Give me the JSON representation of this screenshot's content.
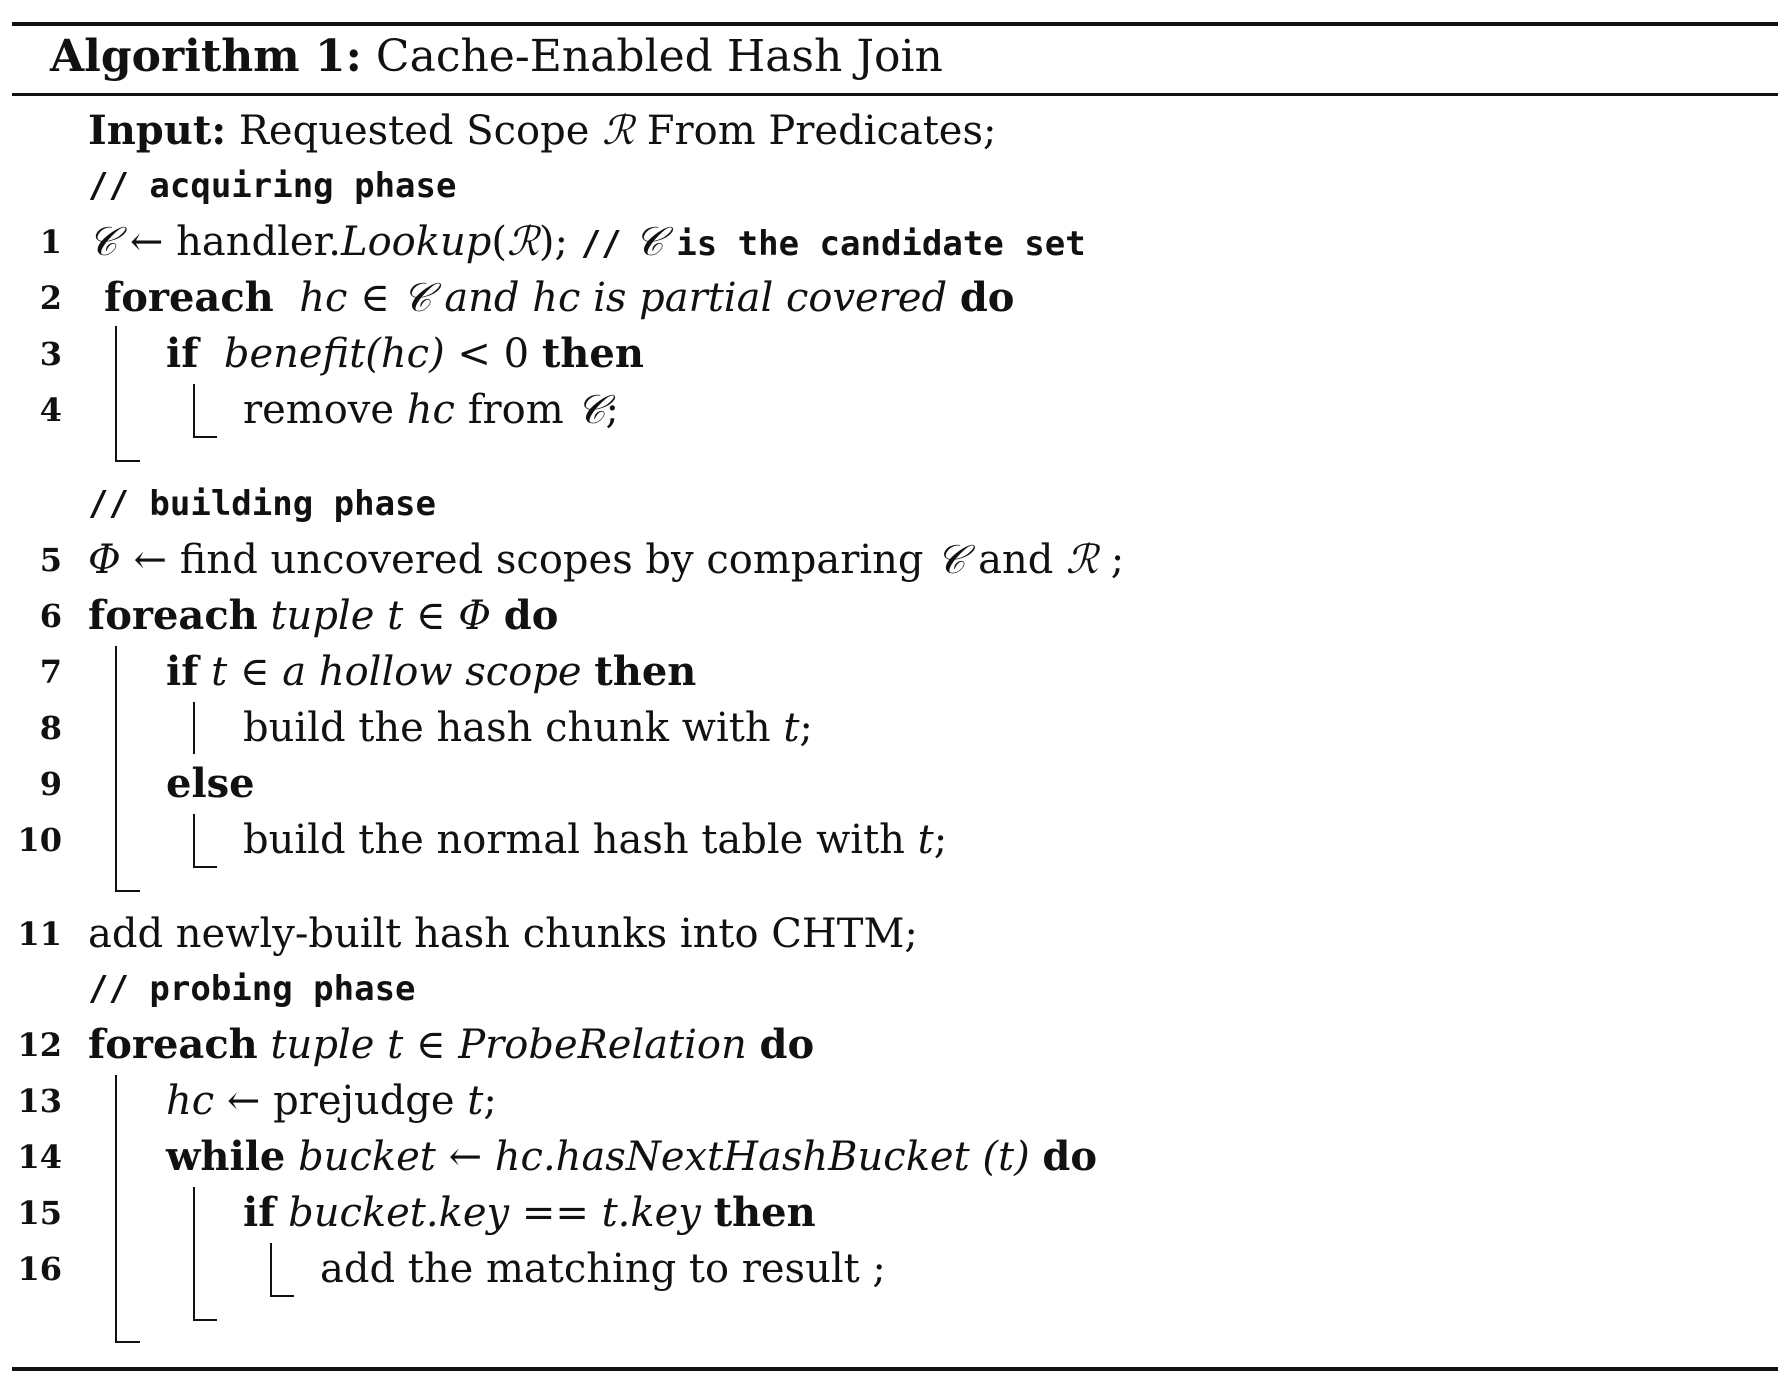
{
  "algorithm": {
    "label": "Algorithm 1:",
    "title": "Cache-Enabled Hash Join"
  },
  "input": {
    "label": "Input:",
    "text_a": "Requested Scope",
    "sym_r": "ℛ",
    "text_b": "From Predicates;"
  },
  "comments": {
    "acquiring": "// acquiring phase",
    "building": "// building phase",
    "probing": "// probing phase"
  },
  "lines": {
    "l1": {
      "num": "1",
      "c": "𝒞",
      "arrow": "←",
      "text": "handler.",
      "fn": "Lookup",
      "open": "(",
      "r": "ℛ",
      "close": ");",
      "cmt_a": "//",
      "cmt_c": "𝒞",
      "cmt_b": "is the candidate set"
    },
    "l2": {
      "num": "2",
      "kw": "foreach",
      "cond_a": "hc",
      "in": "∈",
      "c": "𝒞",
      "cond_b": "and hc is partial covered",
      "kw_end": "do"
    },
    "l3": {
      "num": "3",
      "kw": "if",
      "cond": "benefit(hc)",
      "lt": "< 0",
      "kw_end": "then"
    },
    "l4": {
      "num": "4",
      "text_a": "remove",
      "hc": "hc",
      "text_b": "from",
      "c": "𝒞",
      "semi": ";"
    },
    "l5": {
      "num": "5",
      "phi": "Φ",
      "arrow": "←",
      "text_a": "find uncovered scopes by comparing",
      "c": "𝒞",
      "and": "and",
      "r": "ℛ",
      "semi": ";"
    },
    "l6": {
      "num": "6",
      "kw": "foreach",
      "cond_a": "tuple t",
      "in": "∈",
      "phi": "Φ",
      "kw_end": "do"
    },
    "l7": {
      "num": "7",
      "kw": "if",
      "t": "t",
      "in": "∈",
      "cond": "a hollow scope",
      "kw_end": "then"
    },
    "l8": {
      "num": "8",
      "text": "build the hash chunk with",
      "t": "t",
      "semi": ";"
    },
    "l9": {
      "num": "9",
      "kw": "else"
    },
    "l10": {
      "num": "10",
      "text": "build the normal hash table with",
      "t": "t",
      "semi": ";"
    },
    "l11": {
      "num": "11",
      "text": "add newly-built hash chunks into CHTM;"
    },
    "l12": {
      "num": "12",
      "kw": "foreach",
      "cond_a": "tuple t",
      "in": "∈",
      "cond_b": "ProbeRelation",
      "kw_end": "do"
    },
    "l13": {
      "num": "13",
      "hc": "hc",
      "arrow": "←",
      "text": "prejudge",
      "t": "t",
      "semi": ";"
    },
    "l14": {
      "num": "14",
      "kw": "while",
      "cond_a": "bucket",
      "arrow": "←",
      "cond_b": "hc.hasNextHashBucket (t)",
      "kw_end": "do"
    },
    "l15": {
      "num": "15",
      "kw": "if",
      "cond": "bucket.key == t.key",
      "kw_end": "then"
    },
    "l16": {
      "num": "16",
      "text": "add the matching to result ;"
    }
  }
}
